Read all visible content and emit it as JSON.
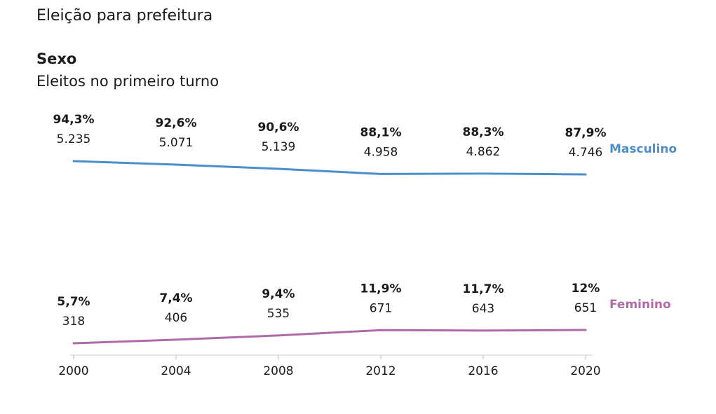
{
  "header": {
    "heading": "Eleição para prefeitura",
    "title": "Sexo",
    "subtitle": "Eleitos no primeiro turno"
  },
  "chart_data": {
    "type": "line",
    "title": "Sexo",
    "subtitle": "Eleitos no primeiro turno",
    "x": [
      "2000",
      "2004",
      "2008",
      "2012",
      "2016",
      "2020"
    ],
    "grid": false,
    "legend": "direct labels at right end of lines",
    "series": [
      {
        "name": "Masculino",
        "color": "#4a8fcb",
        "values": [
          94.3,
          92.6,
          90.6,
          88.1,
          88.3,
          87.9
        ],
        "pct_labels": [
          "94,3%",
          "92,6%",
          "90,6%",
          "88,1%",
          "88,3%",
          "87,9%"
        ],
        "count_labels": [
          "5.235",
          "5.071",
          "5.139",
          "4.958",
          "4.862",
          "4.746"
        ]
      },
      {
        "name": "Feminino",
        "color": "#b06aa8",
        "values": [
          5.7,
          7.4,
          9.4,
          11.9,
          11.7,
          12.0
        ],
        "pct_labels": [
          "5,7%",
          "7,4%",
          "9,4%",
          "11,9%",
          "11,7%",
          "12%"
        ],
        "count_labels": [
          "318",
          "406",
          "535",
          "671",
          "643",
          "651"
        ]
      }
    ]
  }
}
